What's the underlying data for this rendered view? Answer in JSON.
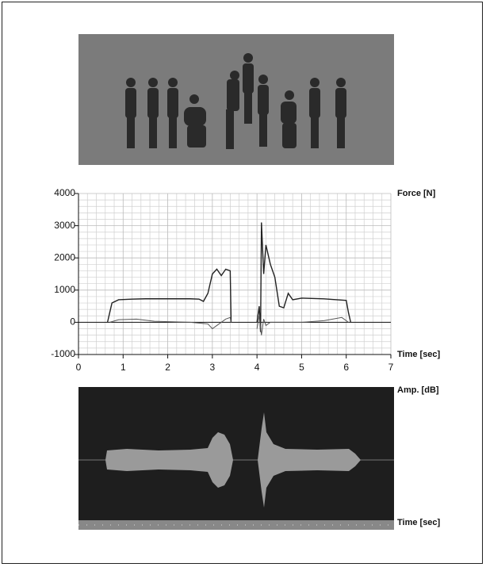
{
  "chart_data": [
    {
      "type": "line",
      "x_label": "Time [sec]",
      "y_label": "Force [N]",
      "xlim": [
        0,
        7
      ],
      "xticks": [
        0,
        1,
        2,
        3,
        4,
        5,
        6,
        7
      ],
      "ylim": [
        -1000,
        4000
      ],
      "yticks": [
        -1000,
        0,
        1000,
        2000,
        3000,
        4000
      ],
      "grid": true,
      "series": [
        {
          "color": "#222222",
          "x": [
            0.65,
            0.7,
            0.75,
            0.9,
            1.2,
            1.5,
            2.0,
            2.5,
            2.7,
            2.8,
            2.9,
            3.0,
            3.1,
            3.2,
            3.3,
            3.4,
            3.42,
            null,
            4.0,
            4.05,
            4.08,
            4.1,
            4.15,
            4.2,
            4.3,
            4.4,
            4.5,
            4.6,
            4.7,
            4.8,
            5.0,
            5.5,
            6.0,
            6.05,
            6.1
          ],
          "values": [
            0,
            300,
            600,
            700,
            720,
            730,
            730,
            730,
            720,
            650,
            900,
            1500,
            1650,
            1450,
            1650,
            1600,
            0,
            null,
            0,
            500,
            -300,
            3100,
            1500,
            2400,
            1800,
            1400,
            500,
            450,
            900,
            700,
            750,
            730,
            680,
            300,
            0
          ]
        },
        {
          "color": "#555555",
          "x": [
            0.7,
            0.9,
            1.3,
            1.7,
            2.5,
            2.9,
            3.0,
            3.1,
            3.3,
            3.4,
            3.42,
            null,
            4.0,
            4.05,
            4.1,
            4.15,
            4.2,
            4.3,
            5.0,
            5.5,
            5.9,
            6.05
          ],
          "values": [
            0,
            80,
            100,
            30,
            0,
            -50,
            -200,
            -100,
            100,
            150,
            0,
            null,
            -200,
            200,
            -400,
            100,
            -100,
            0,
            0,
            50,
            150,
            0
          ]
        }
      ]
    },
    {
      "type": "waveform",
      "x_label": "Time [sec]",
      "y_label": "Amp. [dB]"
    }
  ]
}
